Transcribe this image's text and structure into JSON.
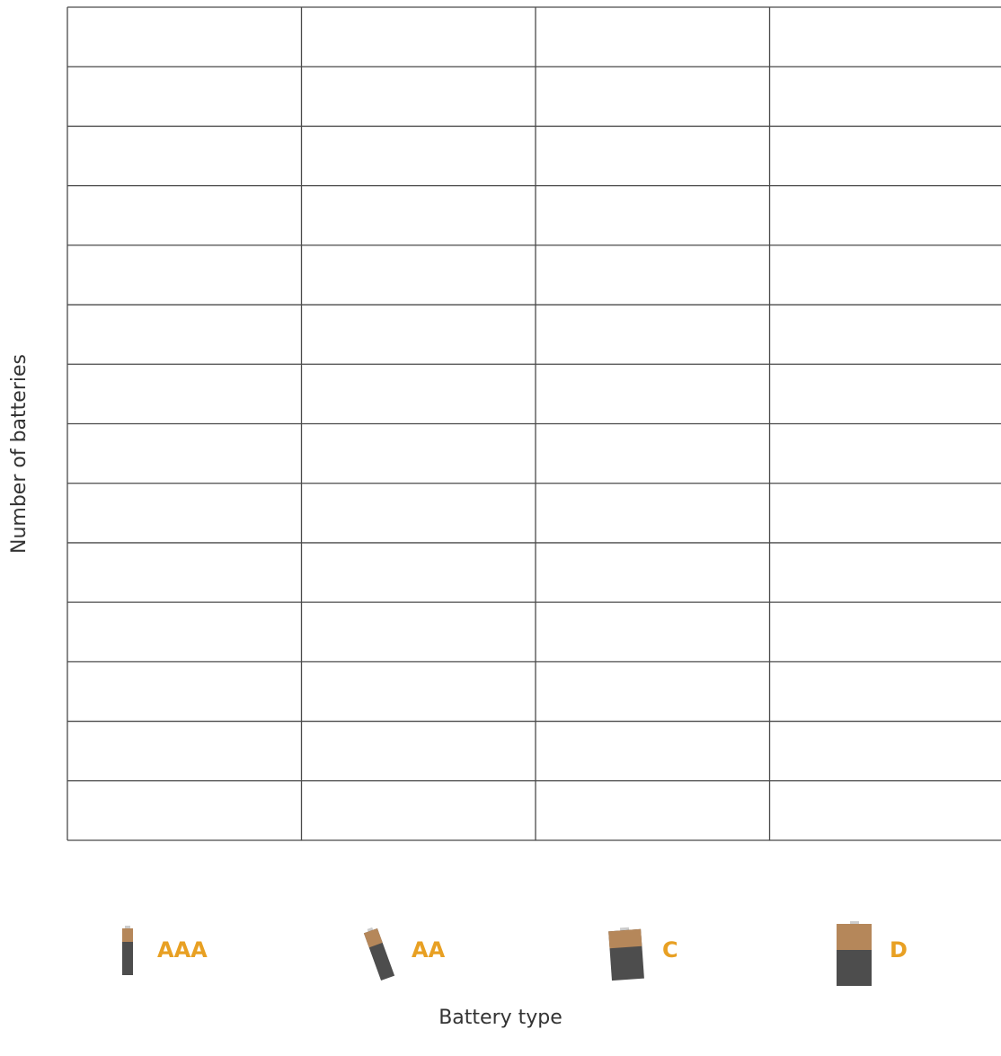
{
  "chart_data": {
    "type": "bar",
    "categories": [
      "AAA",
      "AA",
      "C",
      "D"
    ],
    "xlabel": "Battery type",
    "ylabel": "Number of batteries",
    "grid": true
  }
}
